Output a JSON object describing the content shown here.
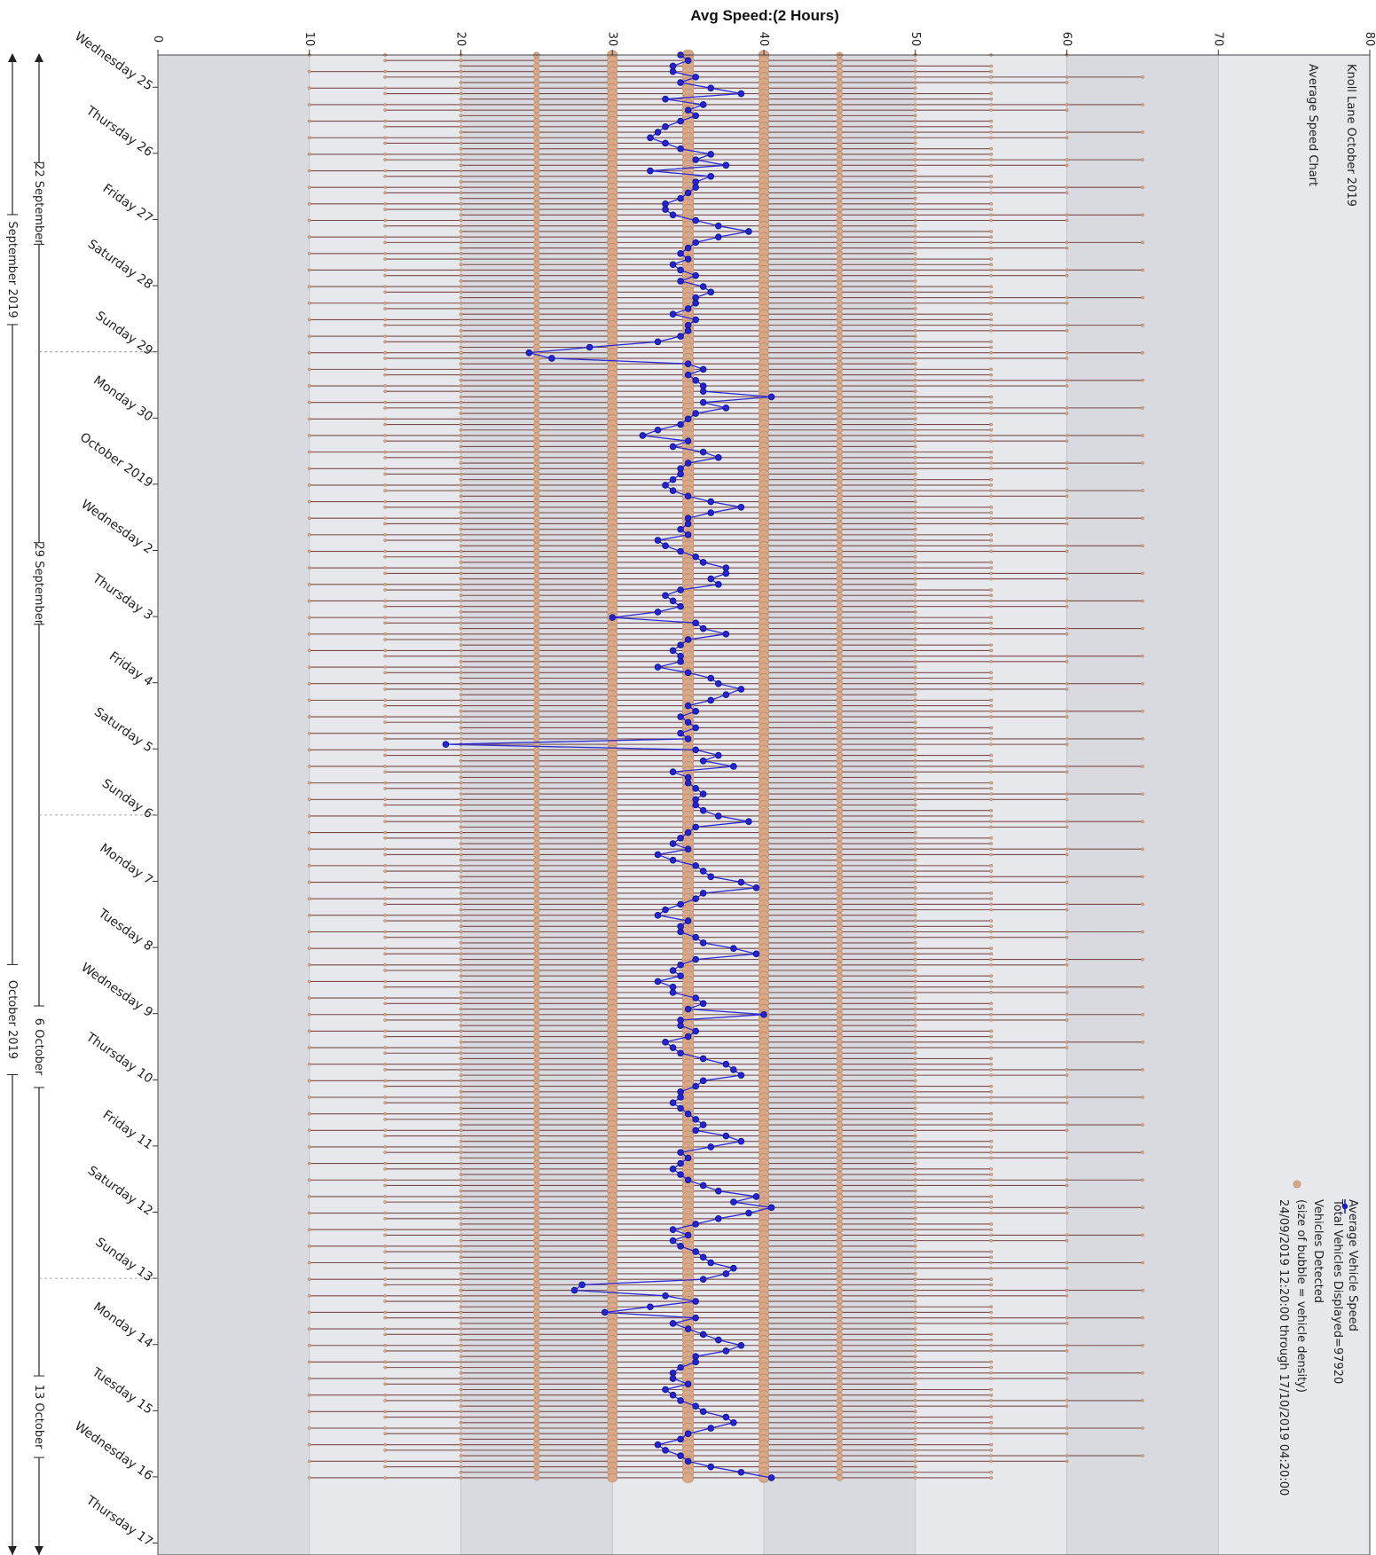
{
  "chart_data": {
    "type": "scatter",
    "title": "Avg Speed:(2 Hours)",
    "subtitle": [
      "Knoll Lane October 2019",
      "Average Speed Chart"
    ],
    "value_axis": {
      "range": [
        0,
        80
      ],
      "ticks": [
        0,
        10,
        20,
        30,
        40,
        50,
        60,
        70,
        80
      ],
      "grid": true
    },
    "date_axis": {
      "start": "2019-09-24 12:20",
      "end": "2019-10-17 04:20",
      "day_labels": [
        {
          "date": "2019-09-25",
          "label": "Wednesday 25"
        },
        {
          "date": "2019-09-26",
          "label": "Thursday 26"
        },
        {
          "date": "2019-09-27",
          "label": "Friday 27"
        },
        {
          "date": "2019-09-28",
          "label": "Saturday 28"
        },
        {
          "date": "2019-09-29",
          "label": "Sunday 29"
        },
        {
          "date": "2019-09-30",
          "label": "Monday 30"
        },
        {
          "date": "2019-10-01",
          "label": "October 2019"
        },
        {
          "date": "2019-10-02",
          "label": "Wednesday 2"
        },
        {
          "date": "2019-10-03",
          "label": "Thursday 3"
        },
        {
          "date": "2019-10-04",
          "label": "Friday 4"
        },
        {
          "date": "2019-10-05",
          "label": "Saturday 5"
        },
        {
          "date": "2019-10-06",
          "label": "Sunday 6"
        },
        {
          "date": "2019-10-07",
          "label": "Monday 7"
        },
        {
          "date": "2019-10-08",
          "label": "Tuesday 8"
        },
        {
          "date": "2019-10-09",
          "label": "Wednesday 9"
        },
        {
          "date": "2019-10-10",
          "label": "Thursday 10"
        },
        {
          "date": "2019-10-11",
          "label": "Friday 11"
        },
        {
          "date": "2019-10-12",
          "label": "Saturday 12"
        },
        {
          "date": "2019-10-13",
          "label": "Sunday 13"
        },
        {
          "date": "2019-10-14",
          "label": "Monday 14"
        },
        {
          "date": "2019-10-15",
          "label": "Tuesday 15"
        },
        {
          "date": "2019-10-16",
          "label": "Wednesday 16"
        },
        {
          "date": "2019-10-17",
          "label": "Thursday 17"
        }
      ],
      "week_labels": [
        {
          "start": "2019-09-22",
          "end": "2019-09-29",
          "label": "22 September"
        },
        {
          "start": "2019-09-29",
          "end": "2019-10-06",
          "label": "29 September"
        },
        {
          "start": "2019-10-06",
          "end": "2019-10-13",
          "label": "6 October"
        },
        {
          "start": "2019-10-13",
          "end": "2019-10-20",
          "label": "13 October"
        }
      ],
      "month_labels": [
        {
          "start": "2019-09-01",
          "end": "2019-10-01",
          "label": "September 2019"
        },
        {
          "start": "2019-10-01",
          "end": "2019-11-01",
          "label": "October 2019"
        }
      ]
    },
    "legend": {
      "placement": "bottom-right",
      "entries": [
        {
          "name": "Average Vehicle Speed",
          "color": "#1a1ad0",
          "marker": "line-dot"
        },
        {
          "name": "Vehicles Detected",
          "color": "#d9a888",
          "marker": "bubble"
        }
      ],
      "notes": [
        "Total Vehicles Displayed=97920",
        "(size of bubble = vehicle density)",
        "24/09/2019 12:20:00 through 17/10/2019 04:20:00"
      ]
    },
    "bubble_levels": [
      10,
      15,
      20,
      25,
      30,
      35,
      40,
      45,
      50,
      55,
      60,
      65,
      70,
      75
    ],
    "series": [
      {
        "name": "Average Vehicle Speed",
        "x_start": "2019-09-24 12:20",
        "x_step_hours": 2,
        "values": [
          34.5,
          35,
          34,
          34,
          35.5,
          34.5,
          36.5,
          38.5,
          33.5,
          36,
          35,
          35.5,
          34.5,
          33.5,
          33,
          32.5,
          33.5,
          34.5,
          36.5,
          35.5,
          37.5,
          32.5,
          36.5,
          35.5,
          35.5,
          35,
          34.5,
          33.5,
          33.5,
          34,
          35.5,
          37,
          39,
          37,
          35.5,
          35,
          34.5,
          35,
          34,
          34.5,
          35.5,
          34.5,
          36,
          36.5,
          35.5,
          35.5,
          35,
          34,
          35.5,
          35,
          35,
          34.5,
          33,
          28.5,
          24.5,
          26,
          35,
          36,
          35,
          35.5,
          36,
          36,
          40.5,
          36,
          37.5,
          35.5,
          35,
          34.5,
          33,
          32,
          35,
          34,
          36,
          37,
          35,
          34.5,
          34.5,
          34,
          33.5,
          34,
          35,
          36.5,
          38.5,
          36.5,
          35,
          35,
          34.5,
          35,
          33,
          33.5,
          34.5,
          35.5,
          36,
          37.5,
          37.5,
          36.5,
          37,
          34.5,
          33.5,
          34,
          34.5,
          33,
          30,
          35.5,
          36,
          37.5,
          35,
          34.5,
          34,
          34.5,
          34.5,
          33,
          35,
          36.5,
          37,
          38.5,
          37.5,
          36.5,
          35,
          35.5,
          34.5,
          35,
          35.5,
          34.5,
          35,
          19,
          35.5,
          37,
          36,
          38,
          34,
          35,
          35,
          35.5,
          36,
          35.5,
          35.5,
          36,
          37,
          39,
          35.5,
          35,
          34.5,
          34,
          35,
          33,
          34,
          35.5,
          36,
          36.5,
          38.5,
          39.5,
          36,
          35.5,
          34.5,
          33.5,
          33,
          35,
          34.5,
          34.5,
          35.5,
          36,
          38,
          39.5,
          35.5,
          34.5,
          34,
          34.5,
          33,
          34,
          34,
          35.5,
          36,
          35,
          40,
          34.5,
          34.5,
          35.5,
          35,
          33.5,
          34,
          34.5,
          36,
          37.5,
          38,
          38.5,
          36,
          35.5,
          34.5,
          34.5,
          34,
          34.5,
          35,
          35.5,
          36,
          35.5,
          37.5,
          38.5,
          36.5,
          34.5,
          35,
          34.5,
          34,
          34.5,
          35,
          36,
          37,
          39.5,
          38,
          40.5,
          39,
          37,
          35.5,
          34,
          35,
          34,
          34.5,
          35.5,
          36,
          36.5,
          38,
          37.5,
          36,
          28,
          27.5,
          33.5,
          35.5,
          32.5,
          29.5,
          35.5,
          34,
          35,
          36,
          37,
          38.5,
          37.5,
          35.5,
          35.5,
          34.5,
          34,
          34,
          35,
          33.5,
          34,
          34.5,
          35.5,
          36,
          37.5,
          38,
          36.5,
          35,
          34.5,
          33,
          33.5,
          34.5,
          35,
          36.5,
          38.5,
          40.5
        ]
      }
    ]
  }
}
